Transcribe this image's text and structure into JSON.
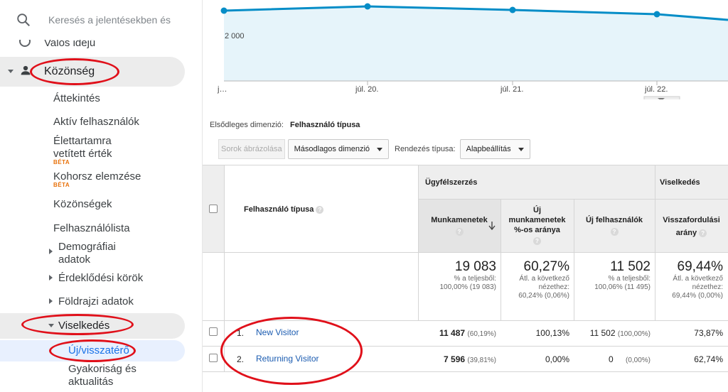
{
  "sidebar": {
    "search_placeholder": "Keresés a jelentésekben és a",
    "cutoff_item": "Valós idejű",
    "audience": "Közönség",
    "audience_items": [
      "Áttekintés",
      "Aktív felhasználók",
      "Élettartamra",
      "vetített érték",
      "Kohorsz elemzése",
      "Közönségek",
      "Felhasználólista",
      "Demográfiai",
      "adatok",
      "Érdeklődési körök",
      "Földrajzi adatok"
    ],
    "beta": "BÉTA",
    "behavior": "Viselkedés",
    "behavior_items": [
      "Új/visszatérő",
      "Gyakoriság és",
      "aktualitás"
    ]
  },
  "chart": {
    "ytick": "2 000",
    "xticks": [
      "j…",
      "júl. 20.",
      "júl. 21.",
      "júl. 22."
    ],
    "line_color": "#058dc7",
    "fill_color": "#e6f4fa"
  },
  "dimension": {
    "label": "Elsődleges dimenzió:",
    "value": "Felhasználó típusa"
  },
  "toolbar": {
    "plot_rows": "Sorok ábrázolása",
    "secondary": "Másodlagos dimenzió",
    "sort_label": "Rendezés típusa:",
    "sort_value": "Alapbeállítás"
  },
  "table": {
    "dim_header": "Felhasználó típusa",
    "group_acq": "Ügyfélszerzés",
    "group_beh": "Viselkedés",
    "col_sessions": "Munkamenetek",
    "col_new_sessions": [
      "Új",
      "munkamenetek",
      "%-os aránya"
    ],
    "col_new_users": "Új felhasználók",
    "col_bounce": [
      "Visszafordulási",
      "arány"
    ],
    "totals": {
      "sessions": "19 083",
      "sessions_sub": [
        "% a teljesből:",
        "100,00% (19 083)"
      ],
      "new_sessions": "60,27%",
      "new_sessions_sub": [
        "Átl. a következő",
        "nézethez:",
        "60,24% (0,06%)"
      ],
      "new_users": "11 502",
      "new_users_sub": [
        "% a teljesből:",
        "100,06% (11 495)"
      ],
      "bounce": "69,44%",
      "bounce_sub": [
        "Átl. a következő",
        "nézethez:",
        "69,44% (0,00%)"
      ]
    },
    "rows": [
      {
        "index": "1.",
        "name": "New Visitor",
        "sessions": "11 487",
        "sessions_pct": "(60,19%)",
        "new_sessions": "100,13%",
        "new_users": "11 502",
        "new_users_pct": "(100,00%)",
        "bounce": "73,87%"
      },
      {
        "index": "2.",
        "name": "Returning Visitor",
        "sessions": "7 596",
        "sessions_pct": "(39,81%)",
        "new_sessions": "0,00%",
        "new_users": "0",
        "new_users_pct": "(0,00%)",
        "bounce": "62,74%"
      }
    ]
  }
}
